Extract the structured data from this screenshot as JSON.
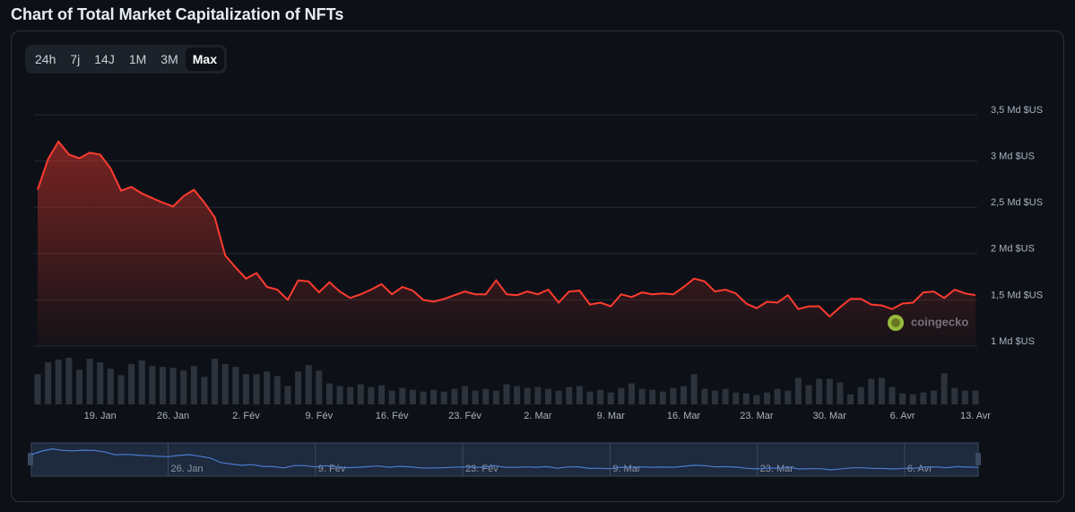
{
  "header": {
    "title": "Chart of Total Market Capitalization of NFTs"
  },
  "range_buttons": [
    "24h",
    "7j",
    "14J",
    "1M",
    "3M",
    "Max"
  ],
  "chart_data": {
    "type": "area",
    "watermark": "coingecko",
    "x": [
      "13. Jan",
      "14. Jan",
      "15. Jan",
      "16. Jan",
      "17. Jan",
      "18. Jan",
      "19. Jan",
      "20. Jan",
      "21. Jan",
      "22. Jan",
      "23. Jan",
      "24. Jan",
      "25. Jan",
      "26. Jan",
      "27. Jan",
      "28. Jan",
      "29. Jan",
      "30. Jan",
      "31. Jan",
      "1. Fév",
      "2. Fév",
      "3. Fév",
      "4. Fév",
      "5. Fév",
      "6. Fév",
      "7. Fév",
      "8. Fév",
      "9. Fév",
      "10. Fév",
      "11. Fév",
      "12. Fév",
      "13. Fév",
      "14. Fév",
      "15. Fév",
      "16. Fév",
      "17. Fév",
      "18. Fév",
      "19. Fév",
      "20. Fév",
      "21. Fév",
      "22. Fév",
      "23. Fév",
      "24. Fév",
      "25. Fév",
      "26. Fév",
      "27. Fév",
      "28. Fév",
      "1. Mar",
      "2. Mar",
      "3. Mar",
      "4. Mar",
      "5. Mar",
      "6. Mar",
      "7. Mar",
      "8. Mar",
      "9. Mar",
      "10. Mar",
      "11. Mar",
      "12. Mar",
      "13. Mar",
      "14. Mar",
      "15. Mar",
      "16. Mar",
      "17. Mar",
      "18. Mar",
      "19. Mar",
      "20. Mar",
      "21. Mar",
      "22. Mar",
      "23. Mar",
      "24. Mar",
      "25. Mar",
      "26. Mar",
      "27. Mar",
      "28. Mar",
      "29. Mar",
      "30. Mar",
      "31. Mar",
      "1. Avr",
      "2. Avr",
      "3. Avr",
      "4. Avr",
      "5. Avr",
      "6. Avr",
      "7. Avr",
      "8. Avr",
      "9. Avr",
      "10. Avr",
      "11. Avr",
      "12. Avr",
      "13. Avr"
    ],
    "values": [
      2.69,
      3.02,
      3.21,
      3.07,
      3.03,
      3.09,
      3.07,
      2.92,
      2.68,
      2.72,
      2.65,
      2.6,
      2.55,
      2.51,
      2.62,
      2.69,
      2.55,
      2.39,
      1.98,
      1.85,
      1.73,
      1.79,
      1.64,
      1.61,
      1.5,
      1.71,
      1.7,
      1.58,
      1.69,
      1.59,
      1.52,
      1.56,
      1.61,
      1.67,
      1.56,
      1.64,
      1.6,
      1.5,
      1.48,
      1.51,
      1.55,
      1.59,
      1.56,
      1.56,
      1.71,
      1.56,
      1.55,
      1.59,
      1.56,
      1.61,
      1.47,
      1.59,
      1.6,
      1.45,
      1.47,
      1.43,
      1.56,
      1.53,
      1.58,
      1.56,
      1.57,
      1.56,
      1.64,
      1.73,
      1.7,
      1.59,
      1.61,
      1.57,
      1.46,
      1.41,
      1.48,
      1.47,
      1.55,
      1.4,
      1.43,
      1.43,
      1.32,
      1.42,
      1.51,
      1.51,
      1.45,
      1.44,
      1.4,
      1.46,
      1.47,
      1.58,
      1.59,
      1.52,
      1.61,
      1.57,
      1.55
    ],
    "color": "#ff3b30",
    "volume": [
      33,
      46,
      49,
      51,
      38,
      50,
      46,
      39,
      32,
      44,
      48,
      42,
      41,
      40,
      37,
      42,
      30,
      50,
      44,
      41,
      33,
      33,
      36,
      31,
      20,
      36,
      43,
      37,
      23,
      20,
      19,
      22,
      19,
      21,
      15,
      18,
      16,
      14,
      16,
      14,
      17,
      20,
      15,
      17,
      15,
      22,
      20,
      18,
      19,
      17,
      15,
      19,
      20,
      14,
      16,
      13,
      18,
      23,
      17,
      16,
      14,
      18,
      20,
      33,
      17,
      15,
      17,
      13,
      12,
      10,
      13,
      17,
      15,
      29,
      21,
      28,
      28,
      24,
      11,
      19,
      28,
      29,
      19,
      12,
      11,
      13,
      15,
      34,
      18,
      15,
      15
    ],
    "volume_color": "#2c333d",
    "ylim": [
      1,
      3.5
    ],
    "yticks": [
      {
        "value": 1,
        "label": "1 Md $US"
      },
      {
        "value": 1.5,
        "label": "1,5 Md $US"
      },
      {
        "value": 2,
        "label": "2 Md $US"
      },
      {
        "value": 2.5,
        "label": "2,5 Md $US"
      },
      {
        "value": 3,
        "label": "3 Md $US"
      },
      {
        "value": 3.5,
        "label": "3,5 Md $US"
      }
    ],
    "xticks": [
      "19. Jan",
      "26. Jan",
      "2. Fév",
      "9. Fév",
      "16. Fév",
      "23. Fév",
      "2. Mar",
      "9. Mar",
      "16. Mar",
      "23. Mar",
      "30. Mar",
      "6. Avr",
      "13. Avr"
    ],
    "grid": true
  }
}
